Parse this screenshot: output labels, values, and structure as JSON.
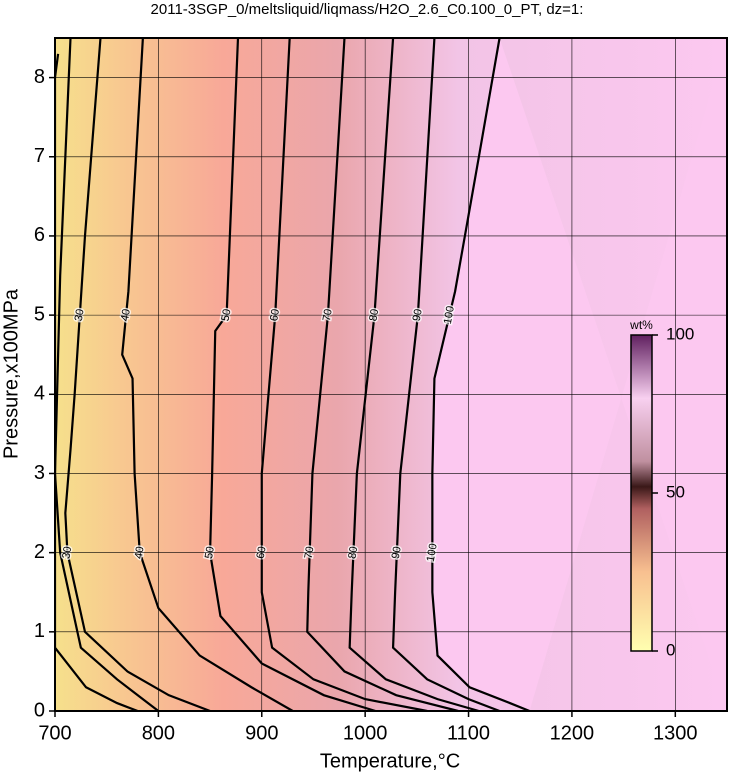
{
  "chart_data": {
    "type": "contour",
    "title": "2011-3SGP_0/meltsliquid/liqmass/H2O_2.6_C0.100_0_PT, dz=1:",
    "x_label": "Temperature,°C",
    "y_label": "Pressure,x100MPa",
    "xlim": [
      700,
      1350
    ],
    "ylim": [
      0,
      8.5
    ],
    "xticks": [
      700,
      800,
      900,
      1000,
      1100,
      1200,
      1300
    ],
    "yticks": [
      0,
      1,
      2,
      3,
      4,
      5,
      6,
      7,
      8
    ],
    "grid": true,
    "contours": [
      {
        "level": 10,
        "x": [
          703,
          700,
          700,
          730,
          760,
          780
        ],
        "y": [
          8.3,
          8.0,
          0.8,
          0.3,
          0.1,
          0
        ]
      },
      {
        "level": 20,
        "x": [
          715,
          710,
          705,
          700,
          705,
          725,
          760,
          790,
          800
        ],
        "y": [
          8.5,
          7,
          5.5,
          3,
          2,
          0.8,
          0.4,
          0.1,
          0
        ]
      },
      {
        "level": 30,
        "x": [
          744,
          729,
          719,
          715,
          710,
          712,
          729,
          770,
          810,
          850
        ],
        "y": [
          8.5,
          6,
          4,
          3.3,
          2.5,
          2,
          1,
          0.5,
          0.2,
          0
        ]
      },
      {
        "level": 40,
        "x": [
          785,
          771,
          765,
          775,
          777,
          782,
          800,
          840,
          890,
          930
        ],
        "y": [
          8.5,
          5.3,
          4.5,
          4.2,
          3,
          2,
          1.3,
          0.7,
          0.3,
          0
        ]
      },
      {
        "level": 50,
        "x": [
          877,
          866,
          855,
          852,
          850,
          860,
          900,
          960,
          1010
        ],
        "y": [
          8.5,
          5,
          4.8,
          3,
          2,
          1.2,
          0.6,
          0.2,
          0
        ]
      },
      {
        "level": 60,
        "x": [
          927,
          913,
          900,
          900,
          910,
          950,
          1000,
          1060
        ],
        "y": [
          8.5,
          5,
          3,
          1.5,
          0.8,
          0.4,
          0.15,
          0
        ]
      },
      {
        "level": 70,
        "x": [
          980,
          964,
          949,
          945,
          944,
          980,
          1030,
          1090
        ],
        "y": [
          8.5,
          5,
          3,
          1.5,
          1,
          0.5,
          0.2,
          0
        ]
      },
      {
        "level": 80,
        "x": [
          1027,
          1009,
          992,
          987,
          985,
          1020,
          1070,
          1110
        ],
        "y": [
          8.5,
          5,
          3,
          1.5,
          0.8,
          0.4,
          0.15,
          0
        ]
      },
      {
        "level": 90,
        "x": [
          1067,
          1051,
          1034,
          1029,
          1027,
          1060,
          1100,
          1130
        ],
        "y": [
          8.5,
          5,
          3,
          1.5,
          0.8,
          0.4,
          0.15,
          0
        ]
      },
      {
        "level": 100,
        "x": [
          1130,
          1110,
          1087,
          1067,
          1065,
          1065,
          1070,
          1101,
          1140,
          1159
        ],
        "y": [
          8.5,
          7,
          5.3,
          4.2,
          3,
          1.5,
          0.7,
          0.3,
          0.1,
          0
        ]
      }
    ],
    "colorbar": {
      "label": "wt%",
      "lim": [
        0,
        100
      ],
      "ticks": [
        0,
        50,
        100
      ]
    }
  }
}
